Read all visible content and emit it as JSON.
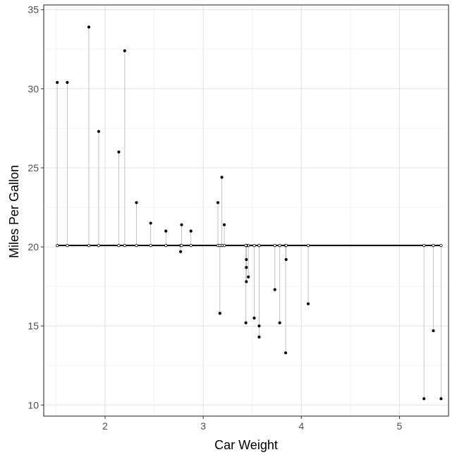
{
  "chart_data": {
    "type": "scatter",
    "title": "",
    "xlabel": "Car Weight",
    "ylabel": "Miles Per Gallon",
    "xlim": [
      1.375,
      5.5
    ],
    "ylim": [
      9.3,
      35.3
    ],
    "xticks": [
      2,
      3,
      4,
      5
    ],
    "yticks": [
      10,
      15,
      20,
      25,
      30,
      35
    ],
    "x_minor_gridlines": [
      1.5,
      2.5,
      3.5,
      4.5
    ],
    "y_minor_gridlines": [
      12.5,
      17.5,
      22.5,
      27.5,
      32.5
    ],
    "grid": true,
    "legend": "none",
    "mean_line": {
      "y": 20.09,
      "x_range": [
        1.513,
        5.424
      ]
    },
    "points": [
      {
        "x": 2.62,
        "y": 21.0
      },
      {
        "x": 2.875,
        "y": 21.0
      },
      {
        "x": 2.32,
        "y": 22.8
      },
      {
        "x": 3.215,
        "y": 21.4
      },
      {
        "x": 3.44,
        "y": 18.7
      },
      {
        "x": 3.46,
        "y": 18.1
      },
      {
        "x": 3.57,
        "y": 14.3
      },
      {
        "x": 3.19,
        "y": 24.4
      },
      {
        "x": 3.15,
        "y": 22.8
      },
      {
        "x": 3.44,
        "y": 19.2
      },
      {
        "x": 3.44,
        "y": 17.8
      },
      {
        "x": 4.07,
        "y": 16.4
      },
      {
        "x": 3.73,
        "y": 17.3
      },
      {
        "x": 3.78,
        "y": 15.2
      },
      {
        "x": 5.25,
        "y": 10.4
      },
      {
        "x": 5.424,
        "y": 10.4
      },
      {
        "x": 5.345,
        "y": 14.7
      },
      {
        "x": 2.2,
        "y": 32.4
      },
      {
        "x": 1.615,
        "y": 30.4
      },
      {
        "x": 1.835,
        "y": 33.9
      },
      {
        "x": 2.465,
        "y": 21.5
      },
      {
        "x": 3.52,
        "y": 15.5
      },
      {
        "x": 3.435,
        "y": 15.2
      },
      {
        "x": 3.84,
        "y": 13.3
      },
      {
        "x": 3.845,
        "y": 19.2
      },
      {
        "x": 1.935,
        "y": 27.3
      },
      {
        "x": 2.14,
        "y": 26.0
      },
      {
        "x": 1.513,
        "y": 30.4
      },
      {
        "x": 3.17,
        "y": 15.8
      },
      {
        "x": 2.77,
        "y": 19.7
      },
      {
        "x": 3.57,
        "y": 15.0
      },
      {
        "x": 2.78,
        "y": 21.4
      }
    ]
  }
}
